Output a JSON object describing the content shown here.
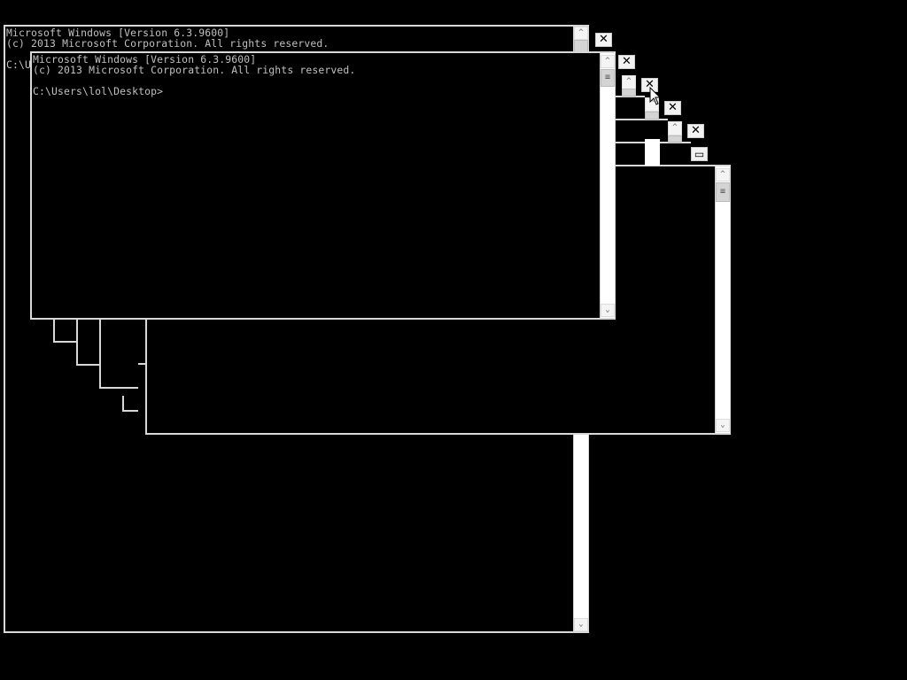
{
  "windows": [
    {
      "line1": "Microsoft Windows [Version 6.3.9600]",
      "line2": "(c) 2013 Microsoft Corporation. All rights reserved.",
      "prompt_partial": "C:\\U"
    },
    {
      "line1": "Microsoft Windows [Version 6.3.9600]",
      "line2": "(c) 2013 Microsoft Corporation. All rights reserved.",
      "prompt": "C:\\Users\\lol\\Desktop>"
    }
  ],
  "icons": {
    "close": "✕",
    "up": "^",
    "down": "⌄",
    "thumb": "≡",
    "restore": "▭",
    "cursor": "arrow-pointer"
  }
}
